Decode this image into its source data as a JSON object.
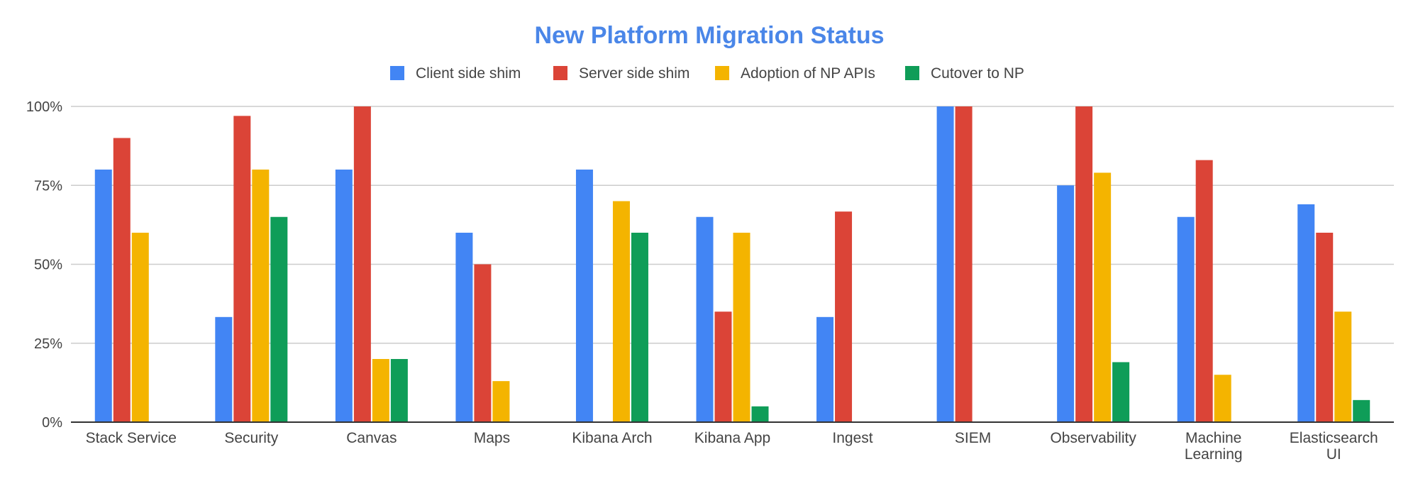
{
  "colors": {
    "title": "#4a86e8",
    "gridline": "#cccccc",
    "axis": "#333333",
    "text": "#444444"
  },
  "chart_data": {
    "type": "bar",
    "title": "New Platform Migration Status",
    "xlabel": "",
    "ylabel": "",
    "ylim": [
      0,
      1
    ],
    "yticks": [
      "0%",
      "25%",
      "50%",
      "75%",
      "100%"
    ],
    "grid": true,
    "legend_position": "top",
    "categories": [
      [
        "Stack Service"
      ],
      [
        "Security"
      ],
      [
        "Canvas"
      ],
      [
        "Maps"
      ],
      [
        "Kibana Arch"
      ],
      [
        "Kibana App"
      ],
      [
        "Ingest"
      ],
      [
        "SIEM"
      ],
      [
        "Observability"
      ],
      [
        "Machine",
        "Learning"
      ],
      [
        "Elasticsearch",
        "UI"
      ]
    ],
    "series": [
      {
        "name": "Client side shim",
        "color": "#4285f4",
        "values": [
          0.8,
          0.333,
          0.8,
          0.6,
          0.8,
          0.65,
          0.333,
          1.0,
          0.75,
          0.65,
          0.69
        ]
      },
      {
        "name": "Server side shim",
        "color": "#db4437",
        "values": [
          0.9,
          0.97,
          1.0,
          0.5,
          0,
          0.35,
          0.667,
          1.0,
          1.0,
          0.83,
          0.6
        ]
      },
      {
        "name": "Adoption of NP APIs",
        "color": "#f4b400",
        "values": [
          0.6,
          0.8,
          0.2,
          0.13,
          0.7,
          0.6,
          0,
          0,
          0.79,
          0.15,
          0.35
        ]
      },
      {
        "name": "Cutover to NP",
        "color": "#0f9d58",
        "values": [
          0,
          0.65,
          0.2,
          0,
          0.6,
          0.05,
          0,
          0,
          0.19,
          0,
          0.07
        ]
      }
    ]
  }
}
